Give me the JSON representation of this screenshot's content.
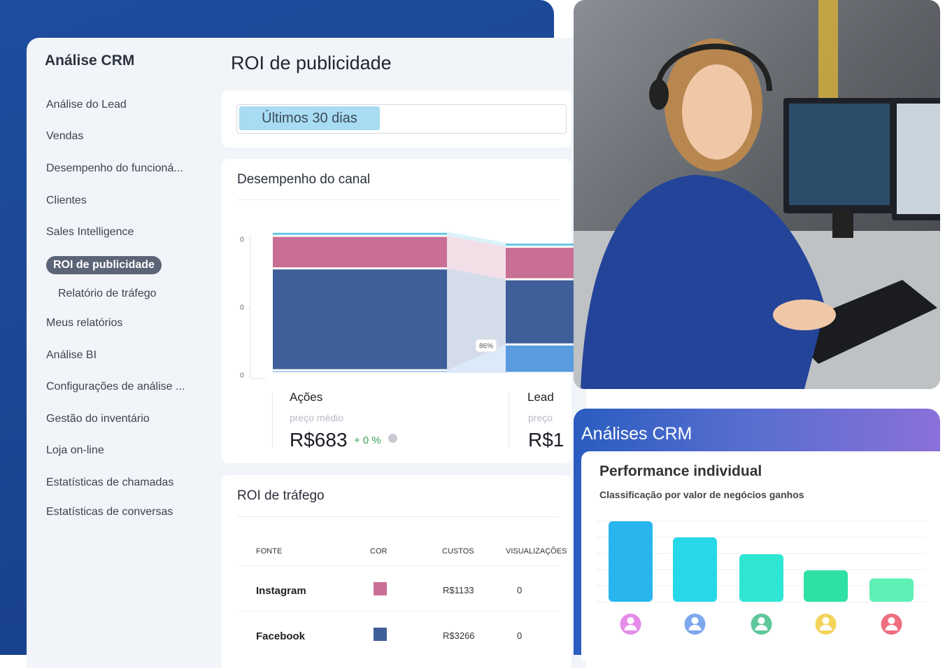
{
  "sidebar": {
    "title": "Análise CRM",
    "items": [
      {
        "label": "Análise do Lead"
      },
      {
        "label": "Vendas"
      },
      {
        "label": "Desempenho do funcioná..."
      },
      {
        "label": "Clientes"
      },
      {
        "label": "Sales Intelligence"
      },
      {
        "label": "ROI de publicidade",
        "selected": true
      },
      {
        "label": "Relatório de tráfego",
        "sub": true
      },
      {
        "label": "Meus relatórios"
      },
      {
        "label": "Análise BI"
      },
      {
        "label": "Configurações de análise ..."
      },
      {
        "label": "Gestão do inventário"
      },
      {
        "label": "Loja on-line"
      },
      {
        "label": "Estatísticas de chamadas"
      },
      {
        "label": "Estatísticas de conversas"
      }
    ]
  },
  "main": {
    "title": "ROI de publicidade",
    "date_filter": "Últimos 30 dias",
    "channel_card": {
      "title": "Desempenho do canal",
      "summary": [
        {
          "sublabel": "preço médio",
          "value": "R$683",
          "change": "+ 0 %"
        },
        {
          "sublabel": "preço",
          "value": "R$1"
        }
      ]
    },
    "traffic_card": {
      "title": "ROI de tráfego",
      "columns": [
        "FONTE",
        "COR",
        "CUSTOS",
        "VISUALIZAÇÕES"
      ],
      "rows": [
        {
          "source": "Instagram",
          "color": "#c96f95",
          "cost": "R$1133",
          "views": "0"
        },
        {
          "source": "Facebook",
          "color": "#3f5f9a",
          "cost": "R$3266",
          "views": "0"
        }
      ]
    }
  },
  "crm_card": {
    "title": "Análises CRM"
  },
  "chart_data": [
    {
      "type": "bar",
      "stacked": true,
      "categories": [
        "Ações",
        "Lead"
      ],
      "series": [
        {
          "color": "#5a9be0",
          "values": [
            2,
            21
          ]
        },
        {
          "color": "#3f5f9a",
          "values": [
            75,
            48
          ]
        },
        {
          "color": "#c96f95",
          "values": [
            24,
            24
          ]
        },
        {
          "color": "#5fc3e4",
          "values": [
            3,
            3
          ]
        }
      ],
      "ylim": [
        0,
        100
      ],
      "yticks": [
        {
          "value": 0,
          "label": "0"
        },
        {
          "value": 50,
          "label": "0"
        },
        {
          "value": 100,
          "label": "0"
        }
      ],
      "annotation": "86%"
    },
    {
      "type": "bar",
      "title": "Performance individual",
      "subtitle": "Classificação por valor de negócios ganhos",
      "values": [
        100,
        80,
        59,
        39,
        29
      ],
      "colors": [
        "#29b6ee",
        "#27d9e8",
        "#2ee6d3",
        "#2ee0a5",
        "#5ef0b5"
      ],
      "ylim": [
        0,
        100
      ]
    }
  ]
}
